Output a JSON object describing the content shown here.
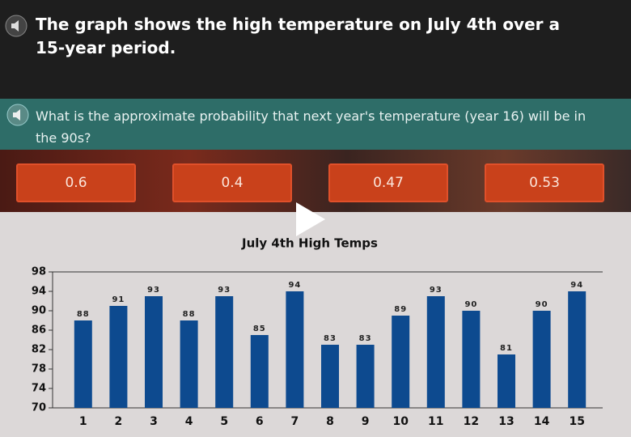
{
  "header": {
    "title": "The graph shows the high temperature on July 4th over a 15-year period."
  },
  "prompt": "What is the approximate probability that next year's temperature (year 16) will be in the 90s?",
  "options": [
    "0.6",
    "0.4",
    "0.47",
    "0.53"
  ],
  "chart_data": {
    "type": "bar",
    "title": "July 4th High Temps",
    "categories": [
      "1",
      "2",
      "3",
      "4",
      "5",
      "6",
      "7",
      "8",
      "9",
      "10",
      "11",
      "12",
      "13",
      "14",
      "15"
    ],
    "values": [
      88,
      91,
      93,
      88,
      93,
      85,
      94,
      83,
      83,
      89,
      93,
      90,
      81,
      90,
      94
    ],
    "color": "#0d4a8f",
    "ylim": [
      70,
      98
    ],
    "yticks": [
      70,
      74,
      78,
      82,
      86,
      90,
      94,
      98
    ],
    "grid": false
  }
}
